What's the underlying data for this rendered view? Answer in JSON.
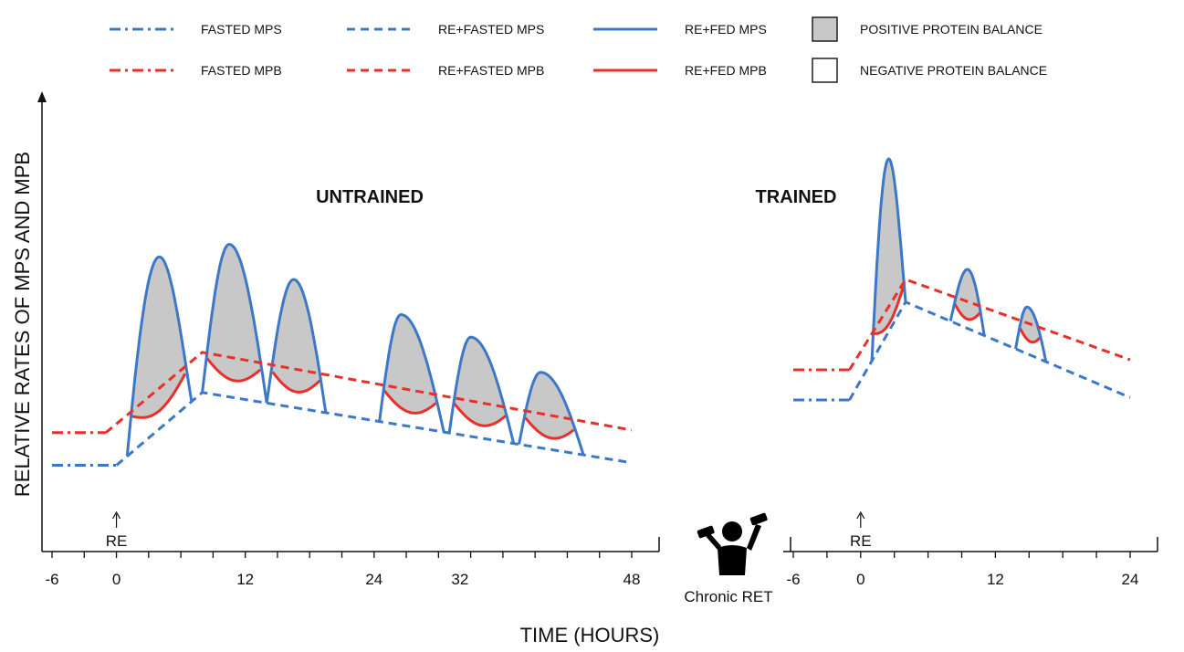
{
  "legend": {
    "items": [
      {
        "label": "FASTED MPS",
        "color": "#3d78c8",
        "style": "dashdot"
      },
      {
        "label": "RE+FASTED MPS",
        "color": "#3d78c8",
        "style": "dashed"
      },
      {
        "label": "RE+FED MPS",
        "color": "#3d78c8",
        "style": "solid"
      },
      {
        "label": "POSITIVE PROTEIN BALANCE",
        "fill": "#c8c8c8",
        "style": "box"
      },
      {
        "label": "FASTED MPB",
        "color": "#e8302a",
        "style": "dashdot"
      },
      {
        "label": "RE+FASTED MPB",
        "color": "#e8302a",
        "style": "dashed"
      },
      {
        "label": "RE+FED MPB",
        "color": "#e8302a",
        "style": "solid"
      },
      {
        "label": "NEGATIVE PROTEIN BALANCE",
        "fill": "#ffffff",
        "style": "box"
      }
    ]
  },
  "colors": {
    "mps": "#3d78c8",
    "mpb": "#e8302a",
    "positive_fill": "#c8c8c8",
    "axis": "#111111"
  },
  "icons": {
    "exercise": "weightlifter-icon"
  },
  "chart_data": [
    {
      "type": "line",
      "title": "UNTRAINED",
      "ylabel": "RELATIVE RATES OF MPS AND MPB",
      "xlabel": "TIME (HOURS)",
      "xlim": [
        -6,
        48
      ],
      "ylim": [
        0,
        10
      ],
      "x_ticks": [
        -6,
        0,
        12,
        24,
        32,
        48
      ],
      "event": {
        "label": "RE",
        "x": 0
      },
      "series": [
        {
          "name": "FASTED MPS",
          "style": "dashdot",
          "color": "#3d78c8",
          "points": [
            [
              -6,
              2.2
            ],
            [
              0,
              2.2
            ]
          ]
        },
        {
          "name": "FASTED MPB",
          "style": "dashdot",
          "color": "#e8302a",
          "points": [
            [
              -6,
              3.5
            ],
            [
              -1,
              3.5
            ]
          ]
        },
        {
          "name": "RE+FASTED MPS",
          "style": "dashed",
          "color": "#3d78c8",
          "points": [
            [
              0,
              2.2
            ],
            [
              8,
              5.1
            ],
            [
              48,
              2.3
            ]
          ]
        },
        {
          "name": "RE+FASTED MPB",
          "style": "dashed",
          "color": "#e8302a",
          "points": [
            [
              -1,
              3.5
            ],
            [
              1,
              4.2
            ],
            [
              8,
              6.7
            ],
            [
              48,
              3.6
            ]
          ]
        },
        {
          "name": "RE+FED MPS",
          "style": "solid",
          "color": "#3d78c8",
          "feedings": [
            {
              "start": 1,
              "peak": 4,
              "end": 7,
              "peak_value": 10.5
            },
            {
              "start": 8,
              "peak": 10.5,
              "end": 14,
              "peak_value": 11.0
            },
            {
              "start": 14,
              "peak": 16.5,
              "end": 19.5,
              "peak_value": 9.6
            },
            {
              "start": 24.5,
              "peak": 26.5,
              "end": 30.5,
              "peak_value": 8.2
            },
            {
              "start": 31,
              "peak": 33,
              "end": 37,
              "peak_value": 7.3
            },
            {
              "start": 37.5,
              "peak": 39.5,
              "end": 43.5,
              "peak_value": 5.9
            }
          ]
        },
        {
          "name": "RE+FED MPB",
          "style": "solid",
          "color": "#e8302a",
          "dip": 0.9
        }
      ]
    },
    {
      "type": "line",
      "title": "TRAINED",
      "xlim": [
        -6,
        24
      ],
      "ylim": [
        0,
        10
      ],
      "x_ticks": [
        -6,
        0,
        12,
        24
      ],
      "event": {
        "label": "RE",
        "x": 0
      },
      "series": [
        {
          "name": "FASTED MPS",
          "style": "dashdot",
          "color": "#3d78c8",
          "points": [
            [
              -6,
              4.8
            ],
            [
              -1,
              4.8
            ]
          ]
        },
        {
          "name": "FASTED MPB",
          "style": "dashdot",
          "color": "#e8302a",
          "points": [
            [
              -6,
              6.0
            ],
            [
              -1,
              6.0
            ]
          ]
        },
        {
          "name": "RE+FASTED MPS",
          "style": "dashed",
          "color": "#3d78c8",
          "points": [
            [
              -1,
              4.8
            ],
            [
              4,
              8.7
            ],
            [
              24,
              4.9
            ]
          ]
        },
        {
          "name": "RE+FASTED MPB",
          "style": "dashed",
          "color": "#e8302a",
          "points": [
            [
              -1,
              6.0
            ],
            [
              4,
              9.6
            ],
            [
              24,
              6.4
            ]
          ]
        },
        {
          "name": "RE+FED MPS",
          "style": "solid",
          "color": "#3d78c8",
          "feedings": [
            {
              "start": 1,
              "peak": 2.5,
              "end": 4,
              "peak_value": 14.4
            },
            {
              "start": 8,
              "peak": 9.5,
              "end": 11,
              "peak_value": 10.0
            },
            {
              "start": 13.8,
              "peak": 14.8,
              "end": 16.5,
              "peak_value": 8.5
            }
          ]
        },
        {
          "name": "RE+FED MPB",
          "style": "solid",
          "color": "#e8302a",
          "dip": 0.7
        }
      ]
    }
  ],
  "annotation": {
    "label": "Chronic RET"
  }
}
